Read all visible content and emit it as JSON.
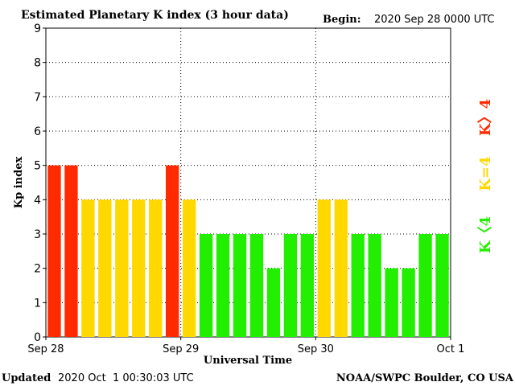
{
  "header": {
    "title": "Estimated Planetary K index (3 hour data)",
    "begin_label": "Begin:",
    "begin_value": "2020 Sep 28 0000 UTC"
  },
  "footer": {
    "updated_label": "Updated",
    "updated_value": "2020 Oct  1 00:30:03 UTC",
    "credit": "NOAA/SWPC Boulder, CO USA"
  },
  "legend": {
    "storm": "K〉4",
    "active": "K=4",
    "quiet": "K〈4"
  },
  "colors": {
    "storm": "#ff2a00",
    "active": "#ffd800",
    "quiet": "#22ee00",
    "grid": "#000000"
  },
  "chart_data": {
    "type": "bar",
    "title": "Estimated Planetary K index (3 hour data)",
    "xlabel": "Universal Time",
    "ylabel": "Kp index",
    "ylim": [
      0,
      9
    ],
    "yticks": [
      "0",
      "1",
      "2",
      "3",
      "4",
      "5",
      "6",
      "7",
      "8",
      "9"
    ],
    "xticks": [
      "Sep 28",
      "Sep 29",
      "Sep 30",
      "Oct 1"
    ],
    "grid": true,
    "bin_hours": 3,
    "values": [
      5,
      5,
      4,
      4,
      4,
      4,
      4,
      5,
      4,
      3,
      3,
      3,
      3,
      2,
      3,
      3,
      4,
      4,
      3,
      3,
      2,
      2,
      3,
      3
    ],
    "categories": [
      "storm",
      "storm",
      "active",
      "active",
      "active",
      "active",
      "active",
      "storm",
      "active",
      "quiet",
      "quiet",
      "quiet",
      "quiet",
      "quiet",
      "quiet",
      "quiet",
      "active",
      "active",
      "quiet",
      "quiet",
      "quiet",
      "quiet",
      "quiet",
      "quiet"
    ]
  }
}
